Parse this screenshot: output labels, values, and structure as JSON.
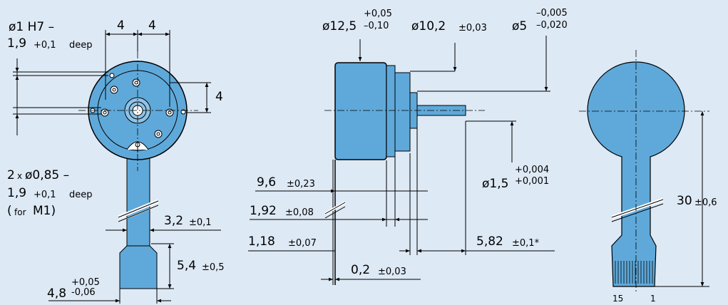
{
  "colors": {
    "background": "#dde9f5",
    "part": "#5fa9da",
    "line": "#000000",
    "white": "#ffffff"
  },
  "front": {
    "hole_dia": "ø1 H7 –",
    "hole_depth": "1,9",
    "hole_depth_tol": "+0,1",
    "deep": "deep",
    "spacing_left": "4",
    "spacing_right": "4",
    "vertical": "4",
    "hole2_count": "2",
    "hole2_x": "x",
    "hole2_dia": "ø0,85 –",
    "hole2_depth": "1,9",
    "hole2_depth_tol": "+0,1",
    "hole2_deep": "deep",
    "hole2_for_open": "(",
    "hole2_for": "for",
    "hole2_for_m": "M1)",
    "flex_width": "3,2",
    "flex_width_tol": "±0,1",
    "connector_len": "5,4",
    "connector_len_tol": "±0,5",
    "connector_width": "4,8",
    "connector_width_tol_up": "+0,05",
    "connector_width_tol_dn": "-0,06"
  },
  "side": {
    "dia_body": "ø12,5",
    "dia_body_tol_up": "+0,05",
    "dia_body_tol_dn": "–0,10",
    "dia_mid": "ø10,2",
    "dia_mid_tol": "±0,03",
    "dia_shaft_mount": "ø5",
    "dia_shaft_mount_tol_up": "–0,005",
    "dia_shaft_mount_tol_dn": "–0,020",
    "dia_shaft": "ø1,5",
    "dia_shaft_tol_up": "+0,004",
    "dia_shaft_tol_dn": "+0,001",
    "len_a": "9,6",
    "len_a_tol": "±0,23",
    "len_b": "1,92",
    "len_b_tol": "±0,08",
    "len_c": "1,18",
    "len_c_tol": "±0,07",
    "len_shaft": "5,82",
    "len_shaft_tol": "±0,1*",
    "thickness": "0,2",
    "thickness_tol": "±0,03"
  },
  "flex": {
    "length": "30",
    "length_tol": "±0,6",
    "pin_first": "15",
    "pin_last": "1"
  }
}
